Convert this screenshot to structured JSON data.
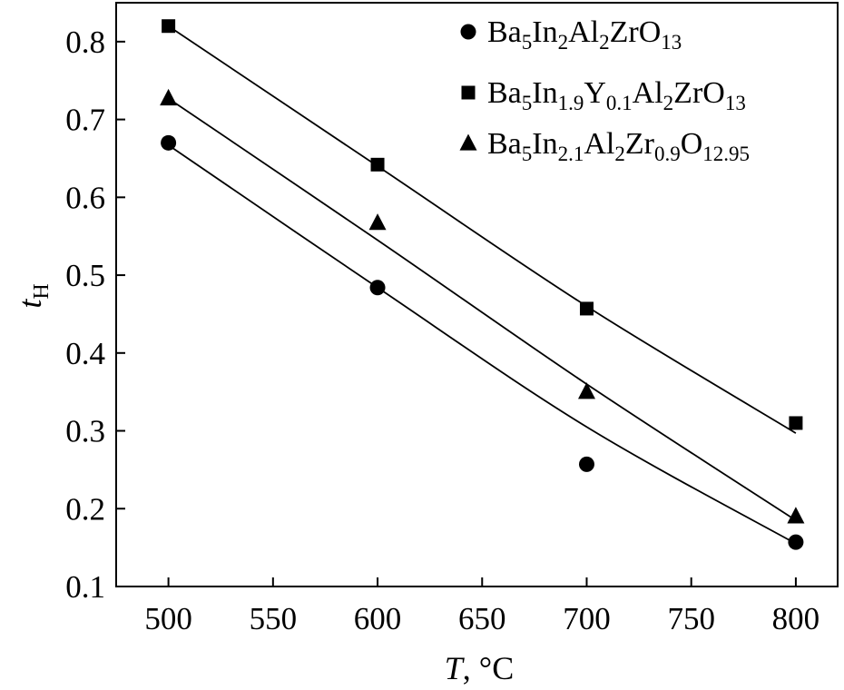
{
  "chart_data": {
    "type": "scatter",
    "xlabel": {
      "main": "T",
      "rest": ", °C"
    },
    "ylabel": {
      "main": "t",
      "sub": "H"
    },
    "xlim": [
      475,
      820
    ],
    "ylim": [
      0.1,
      0.85
    ],
    "xticks": [
      500,
      550,
      600,
      650,
      700,
      750,
      800
    ],
    "yticks": [
      0.1,
      0.2,
      0.3,
      0.4,
      0.5,
      0.6,
      0.7,
      0.8
    ],
    "grid": false,
    "legend_position": "top-right",
    "series": [
      {
        "marker": "circle",
        "label_parts": [
          [
            "Ba",
            ""
          ],
          [
            "5",
            "sub"
          ],
          [
            "In",
            ""
          ],
          [
            "2",
            "sub"
          ],
          [
            "Al",
            ""
          ],
          [
            "2",
            "sub"
          ],
          [
            "ZrO",
            ""
          ],
          [
            "13",
            "sub"
          ]
        ],
        "x": [
          500,
          600,
          700,
          800
        ],
        "y": [
          0.67,
          0.484,
          0.257,
          0.157
        ],
        "fit_curve": [
          [
            500,
            0.667
          ],
          [
            600,
            0.484
          ],
          [
            700,
            0.305
          ],
          [
            800,
            0.155
          ]
        ]
      },
      {
        "marker": "square",
        "label_parts": [
          [
            "Ba",
            ""
          ],
          [
            "5",
            "sub"
          ],
          [
            "In",
            ""
          ],
          [
            "1.9",
            "sub"
          ],
          [
            "Y",
            ""
          ],
          [
            "0.1",
            "sub"
          ],
          [
            "Al",
            ""
          ],
          [
            "2",
            "sub"
          ],
          [
            "ZrO",
            ""
          ],
          [
            "13",
            "sub"
          ]
        ],
        "x": [
          500,
          600,
          700,
          800
        ],
        "y": [
          0.82,
          0.642,
          0.457,
          0.31
        ],
        "fit_curve": [
          [
            500,
            0.82
          ],
          [
            600,
            0.64
          ],
          [
            700,
            0.46
          ],
          [
            800,
            0.297
          ]
        ]
      },
      {
        "marker": "triangle",
        "label_parts": [
          [
            "Ba",
            ""
          ],
          [
            "5",
            "sub"
          ],
          [
            "In",
            ""
          ],
          [
            "2.1",
            "sub"
          ],
          [
            "Al",
            ""
          ],
          [
            "2",
            "sub"
          ],
          [
            "Zr",
            ""
          ],
          [
            "0.9",
            "sub"
          ],
          [
            "O",
            ""
          ],
          [
            "12.95",
            "sub"
          ]
        ],
        "x": [
          500,
          600,
          700,
          800
        ],
        "y": [
          0.727,
          0.567,
          0.35,
          0.19
        ],
        "fit_curve": [
          [
            500,
            0.727
          ],
          [
            600,
            0.545
          ],
          [
            700,
            0.36
          ],
          [
            800,
            0.185
          ]
        ]
      }
    ]
  }
}
